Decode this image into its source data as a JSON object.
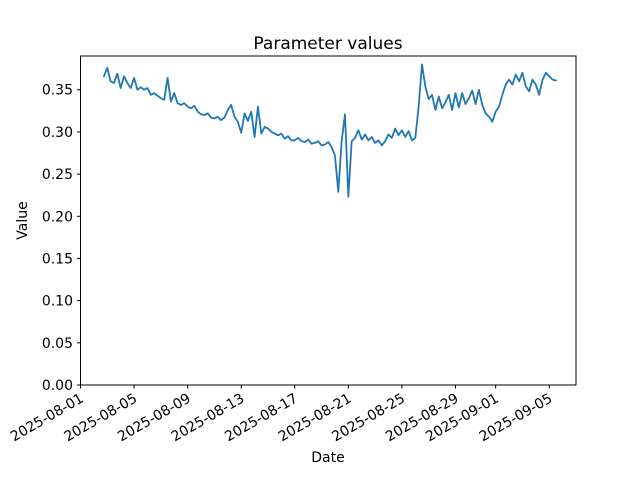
{
  "chart_data": {
    "type": "line",
    "title": "Parameter values",
    "xlabel": "Date",
    "ylabel": "Value",
    "series_color": "#1f77b4",
    "background_color": "#ffffff",
    "grid": false,
    "legend": false,
    "x_axis_min": "2025-08-01 00:00",
    "x_axis_max": "2025-09-07 00:00",
    "x_axis_span_days": 37,
    "x_start": "2025-08-02 18:00",
    "x_start_day_offset": 1.75,
    "x_point_interval_hours": 6,
    "x_point_interval_days": 0.25,
    "x_tick_rotation_deg": 30,
    "x_ticks": [
      {
        "label": "2025-08-01",
        "day_offset": 0
      },
      {
        "label": "2025-08-05",
        "day_offset": 4
      },
      {
        "label": "2025-08-09",
        "day_offset": 8
      },
      {
        "label": "2025-08-13",
        "day_offset": 12
      },
      {
        "label": "2025-08-17",
        "day_offset": 16
      },
      {
        "label": "2025-08-21",
        "day_offset": 20
      },
      {
        "label": "2025-08-25",
        "day_offset": 24
      },
      {
        "label": "2025-08-29",
        "day_offset": 28
      },
      {
        "label": "2025-09-01",
        "day_offset": 31
      },
      {
        "label": "2025-09-05",
        "day_offset": 35
      }
    ],
    "ylim": [
      0,
      0.39
    ],
    "y_ticks": [
      {
        "label": "0.00",
        "value": 0.0
      },
      {
        "label": "0.05",
        "value": 0.05
      },
      {
        "label": "0.10",
        "value": 0.1
      },
      {
        "label": "0.15",
        "value": 0.15
      },
      {
        "label": "0.20",
        "value": 0.2
      },
      {
        "label": "0.25",
        "value": 0.25
      },
      {
        "label": "0.30",
        "value": 0.3
      },
      {
        "label": "0.35",
        "value": 0.35
      }
    ],
    "values": [
      0.366,
      0.376,
      0.36,
      0.358,
      0.369,
      0.352,
      0.366,
      0.358,
      0.352,
      0.364,
      0.35,
      0.353,
      0.35,
      0.352,
      0.344,
      0.346,
      0.343,
      0.34,
      0.338,
      0.364,
      0.336,
      0.346,
      0.334,
      0.332,
      0.334,
      0.33,
      0.328,
      0.331,
      0.324,
      0.321,
      0.32,
      0.322,
      0.317,
      0.316,
      0.318,
      0.314,
      0.317,
      0.326,
      0.332,
      0.318,
      0.312,
      0.299,
      0.322,
      0.313,
      0.324,
      0.294,
      0.33,
      0.298,
      0.306,
      0.304,
      0.3,
      0.298,
      0.296,
      0.298,
      0.292,
      0.295,
      0.29,
      0.29,
      0.293,
      0.289,
      0.288,
      0.291,
      0.286,
      0.287,
      0.289,
      0.284,
      0.285,
      0.288,
      0.282,
      0.272,
      0.229,
      0.289,
      0.321,
      0.223,
      0.289,
      0.293,
      0.302,
      0.291,
      0.297,
      0.29,
      0.294,
      0.287,
      0.29,
      0.284,
      0.289,
      0.297,
      0.293,
      0.304,
      0.296,
      0.302,
      0.294,
      0.301,
      0.29,
      0.293,
      0.33,
      0.38,
      0.354,
      0.339,
      0.344,
      0.326,
      0.342,
      0.328,
      0.335,
      0.344,
      0.326,
      0.346,
      0.329,
      0.346,
      0.333,
      0.34,
      0.349,
      0.333,
      0.35,
      0.332,
      0.322,
      0.318,
      0.312,
      0.324,
      0.33,
      0.344,
      0.356,
      0.362,
      0.356,
      0.368,
      0.36,
      0.37,
      0.354,
      0.348,
      0.362,
      0.356,
      0.344,
      0.362,
      0.37,
      0.366,
      0.362,
      0.361
    ]
  }
}
